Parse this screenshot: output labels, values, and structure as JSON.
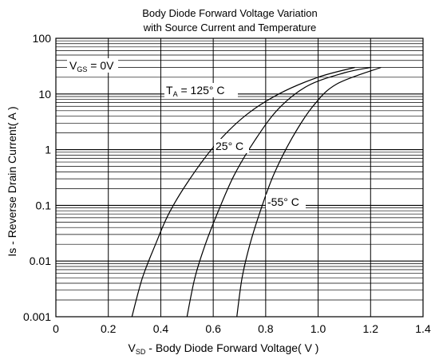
{
  "chart_data": {
    "type": "line",
    "title_lines": [
      "Body Diode Forward Voltage Variation",
      "with Source Current and Temperature"
    ],
    "xlabel": {
      "symbol": "V",
      "sub": "SD",
      "text": " - Body Diode Forward Voltage( V )"
    },
    "ylabel": "Is - Reverse Drain Current( A )",
    "x_scale": "linear",
    "y_scale": "log",
    "xlim": [
      0,
      1.4
    ],
    "ylim": [
      0.001,
      100
    ],
    "x_ticks": [
      0,
      0.2,
      0.4,
      0.6,
      0.8,
      1.0,
      1.2,
      1.4
    ],
    "x_tick_labels": [
      "0",
      "0.2",
      "0.4",
      "0.6",
      "0.8",
      "1.0",
      "1.2",
      "1.4"
    ],
    "y_ticks": [
      0.001,
      0.01,
      0.1,
      1,
      10,
      100
    ],
    "y_tick_labels": [
      "0.001",
      "0.01",
      "0.1",
      "1",
      "10",
      "100"
    ],
    "grid": true,
    "vgs_annotation": {
      "symbol": "V",
      "sub": "GS",
      "text": " = 0V"
    },
    "series": [
      {
        "label_symbol": "T",
        "label_sub": "A",
        "label_text": " = 125° C",
        "points": [
          [
            0.29,
            0.001
          ],
          [
            0.33,
            0.005
          ],
          [
            0.38,
            0.02
          ],
          [
            0.43,
            0.07
          ],
          [
            0.5,
            0.25
          ],
          [
            0.6,
            1.1
          ],
          [
            0.72,
            4
          ],
          [
            0.85,
            10
          ],
          [
            1.0,
            20
          ],
          [
            1.14,
            30
          ]
        ]
      },
      {
        "label_symbol": "",
        "label_sub": "",
        "label_text": "25° C",
        "points": [
          [
            0.5,
            0.001
          ],
          [
            0.53,
            0.005
          ],
          [
            0.57,
            0.02
          ],
          [
            0.62,
            0.08
          ],
          [
            0.68,
            0.35
          ],
          [
            0.76,
            1.5
          ],
          [
            0.85,
            5.5
          ],
          [
            0.96,
            14
          ],
          [
            1.1,
            24
          ],
          [
            1.2,
            30
          ]
        ]
      },
      {
        "label_symbol": "",
        "label_sub": "",
        "label_text": "-55° C",
        "points": [
          [
            0.69,
            0.001
          ],
          [
            0.71,
            0.005
          ],
          [
            0.74,
            0.02
          ],
          [
            0.78,
            0.08
          ],
          [
            0.83,
            0.35
          ],
          [
            0.9,
            1.6
          ],
          [
            0.98,
            6
          ],
          [
            1.07,
            15
          ],
          [
            1.24,
            30
          ]
        ]
      }
    ]
  }
}
